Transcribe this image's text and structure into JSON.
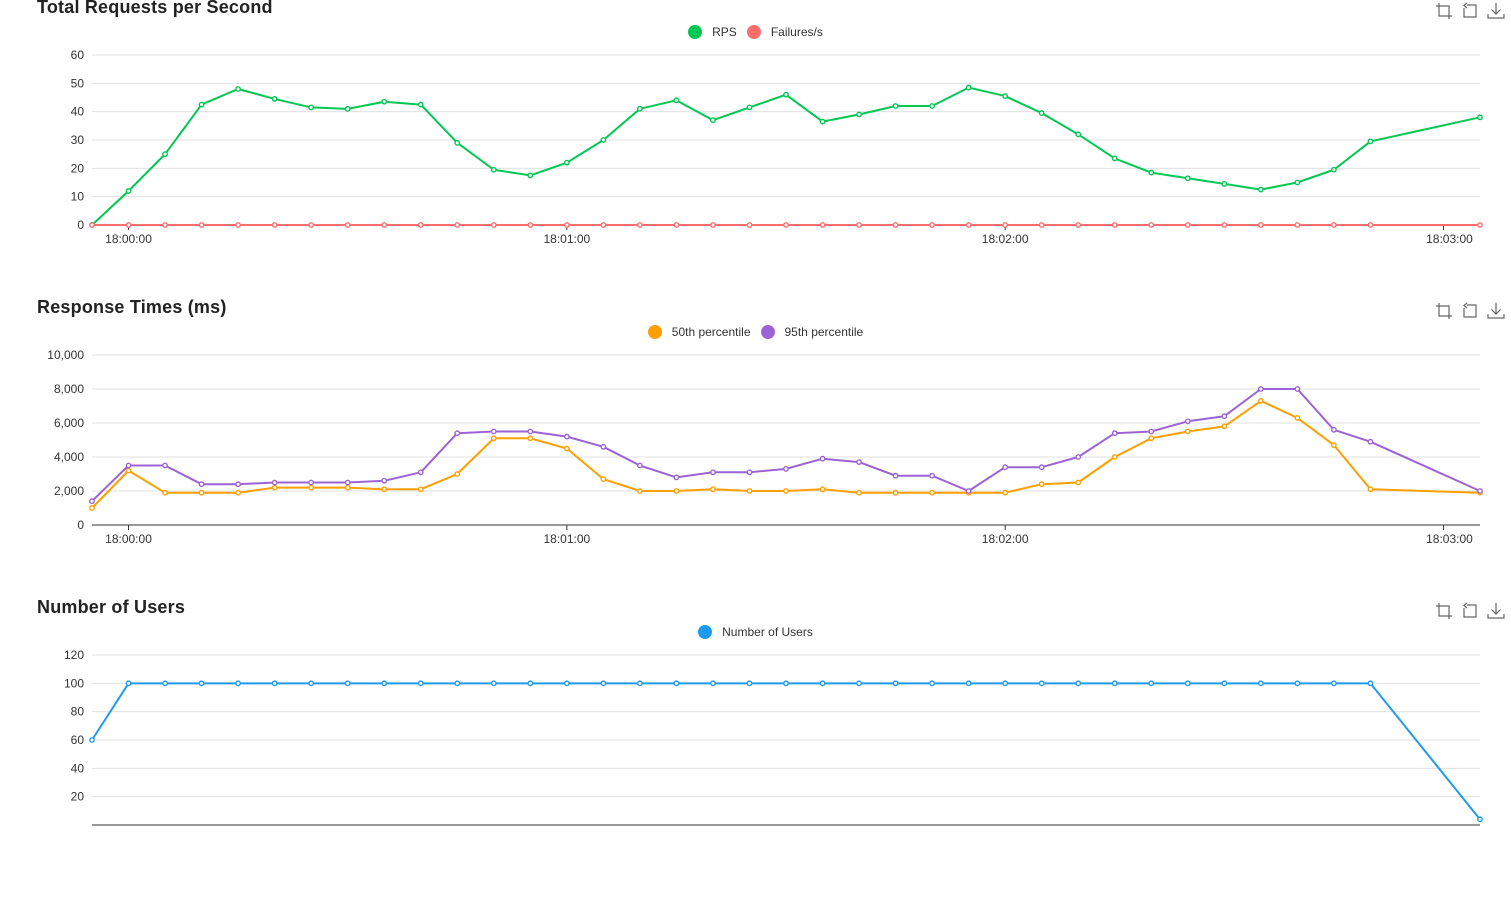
{
  "toolbox": {
    "zoom": "data-zoom-icon",
    "restore": "restore-icon",
    "save": "save-as-image-icon"
  },
  "chart_data": [
    {
      "type": "line",
      "title": "Total Requests per Second",
      "x_ticks": [
        "18:00:00",
        "18:01:00",
        "18:02:00",
        "18:03:00"
      ],
      "ylim": [
        0,
        60
      ],
      "y_ticks": [
        "0",
        "10",
        "20",
        "30",
        "40",
        "50",
        "60"
      ],
      "y_tick_values": [
        0,
        10,
        20,
        30,
        40,
        50,
        60
      ],
      "x_count": 39,
      "series": [
        {
          "name": "RPS",
          "color": "#00c853",
          "values": [
            0,
            12,
            25,
            42.5,
            48,
            44.5,
            41.5,
            41,
            43.5,
            42.5,
            29,
            19.5,
            17.5,
            22,
            30,
            41,
            44,
            37,
            41.5,
            46,
            36.5,
            39,
            42,
            42,
            48.5,
            45.5,
            39.5,
            32,
            23.5,
            18.5,
            16.5,
            14.5,
            12.5,
            15,
            19.5,
            29.5,
            null,
            null,
            38
          ]
        },
        {
          "name": "Failures/s",
          "color": "#ff6d6d",
          "values": [
            0,
            0,
            0,
            0,
            0,
            0,
            0,
            0,
            0,
            0,
            0,
            0,
            0,
            0,
            0,
            0,
            0,
            0,
            0,
            0,
            0,
            0,
            0,
            0,
            0,
            0,
            0,
            0,
            0,
            0,
            0,
            0,
            0,
            0,
            0,
            0,
            null,
            null,
            0
          ]
        }
      ]
    },
    {
      "type": "line",
      "title": "Response Times (ms)",
      "x_ticks": [
        "18:00:00",
        "18:01:00",
        "18:02:00",
        "18:03:00"
      ],
      "ylim": [
        0,
        10000
      ],
      "y_ticks": [
        "0",
        "2,000",
        "4,000",
        "6,000",
        "8,000",
        "10,000"
      ],
      "y_tick_values": [
        0,
        2000,
        4000,
        6000,
        8000,
        10000
      ],
      "x_count": 39,
      "series": [
        {
          "name": "50th percentile",
          "color": "#ff9f00",
          "values": [
            1000,
            3200,
            1900,
            1900,
            1900,
            2200,
            2200,
            2200,
            2100,
            2100,
            3000,
            5100,
            5100,
            4500,
            2700,
            2000,
            2000,
            2100,
            2000,
            2000,
            2100,
            1900,
            1900,
            1900,
            1900,
            1900,
            2400,
            2500,
            4000,
            5100,
            5500,
            5800,
            7300,
            6300,
            4700,
            2100,
            null,
            null,
            1900
          ]
        },
        {
          "name": "95th percentile",
          "color": "#9c63d6",
          "values": [
            1400,
            3500,
            3500,
            2400,
            2400,
            2500,
            2500,
            2500,
            2600,
            3100,
            5400,
            5500,
            5500,
            5200,
            4600,
            3500,
            2800,
            3100,
            3100,
            3300,
            3900,
            3700,
            2900,
            2900,
            2000,
            3400,
            3400,
            4000,
            5400,
            5500,
            6100,
            6400,
            8000,
            8000,
            5600,
            4900,
            null,
            null,
            2000
          ]
        }
      ]
    },
    {
      "type": "line",
      "title": "Number of Users",
      "x_ticks": [],
      "ylim": [
        0,
        120
      ],
      "y_ticks": [
        "20",
        "40",
        "60",
        "80",
        "100",
        "120"
      ],
      "y_tick_values": [
        20,
        40,
        60,
        80,
        100,
        120
      ],
      "x_count": 39,
      "series": [
        {
          "name": "Number of Users",
          "color": "#1e9bf0",
          "values": [
            60,
            100,
            100,
            100,
            100,
            100,
            100,
            100,
            100,
            100,
            100,
            100,
            100,
            100,
            100,
            100,
            100,
            100,
            100,
            100,
            100,
            100,
            100,
            100,
            100,
            100,
            100,
            100,
            100,
            100,
            100,
            100,
            100,
            100,
            100,
            100,
            null,
            null,
            4
          ]
        }
      ]
    }
  ]
}
